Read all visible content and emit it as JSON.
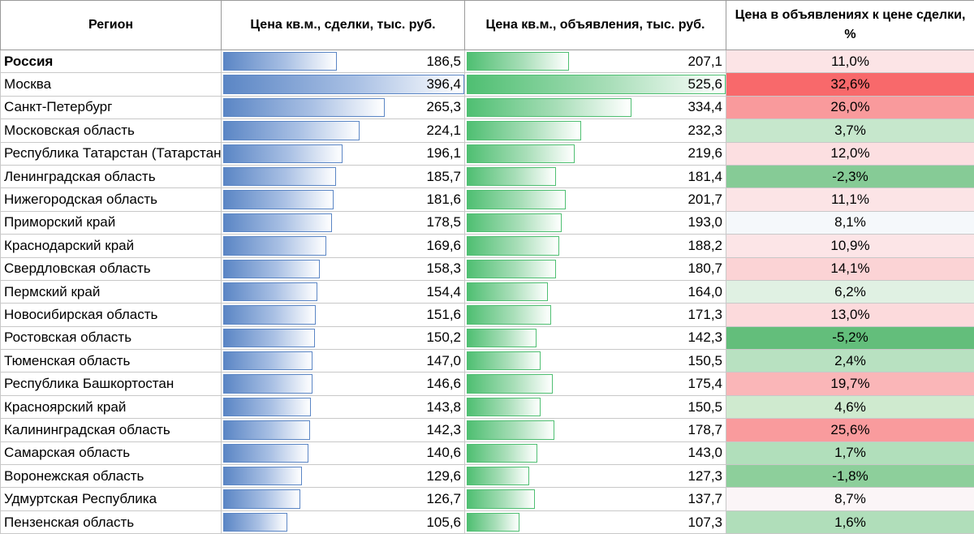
{
  "headers": {
    "region": "Регион",
    "deal": "Цена кв.м., сделки, тыс. руб.",
    "ad": "Цена кв.м., объявления, тыс. руб.",
    "diff": "Цена в объявлениях к цене сделки, %"
  },
  "scale": {
    "deal_max": 396.4,
    "ad_max": 525.6
  },
  "rows": [
    {
      "region": "Россия",
      "deal": "186,5",
      "deal_v": 186.5,
      "ad": "207,1",
      "ad_v": 207.1,
      "diff": "11,0%",
      "diff_color": "#fce4e6",
      "bold": true
    },
    {
      "region": "Москва",
      "deal": "396,4",
      "deal_v": 396.4,
      "ad": "525,6",
      "ad_v": 525.6,
      "diff": "32,6%",
      "diff_color": "#f8696b"
    },
    {
      "region": "Санкт-Петербург",
      "deal": "265,3",
      "deal_v": 265.3,
      "ad": "334,4",
      "ad_v": 334.4,
      "diff": "26,0%",
      "diff_color": "#f99a9c"
    },
    {
      "region": "Московская область",
      "deal": "224,1",
      "deal_v": 224.1,
      "ad": "232,3",
      "ad_v": 232.3,
      "diff": "3,7%",
      "diff_color": "#c6e7cc"
    },
    {
      "region": "Республика Татарстан (Татарстан)",
      "deal": "196,1",
      "deal_v": 196.1,
      "ad": "219,6",
      "ad_v": 219.6,
      "diff": "12,0%",
      "diff_color": "#fcdfe1"
    },
    {
      "region": "Ленинградская область",
      "deal": "185,7",
      "deal_v": 185.7,
      "ad": "181,4",
      "ad_v": 181.4,
      "diff": "-2,3%",
      "diff_color": "#86cb96"
    },
    {
      "region": "Нижегородская область",
      "deal": "181,6",
      "deal_v": 181.6,
      "ad": "201,7",
      "ad_v": 201.7,
      "diff": "11,1%",
      "diff_color": "#fce4e6"
    },
    {
      "region": "Приморский край",
      "deal": "178,5",
      "deal_v": 178.5,
      "ad": "193,0",
      "ad_v": 193.0,
      "diff": "8,1%",
      "diff_color": "#f5f8fb"
    },
    {
      "region": "Краснодарский край",
      "deal": "169,6",
      "deal_v": 169.6,
      "ad": "188,2",
      "ad_v": 188.2,
      "diff": "10,9%",
      "diff_color": "#fce5e7"
    },
    {
      "region": "Свердловская область",
      "deal": "158,3",
      "deal_v": 158.3,
      "ad": "180,7",
      "ad_v": 180.7,
      "diff": "14,1%",
      "diff_color": "#fbd3d5"
    },
    {
      "region": "Пермский край",
      "deal": "154,4",
      "deal_v": 154.4,
      "ad": "164,0",
      "ad_v": 164.0,
      "diff": "6,2%",
      "diff_color": "#e0f1e3"
    },
    {
      "region": "Новосибирская область",
      "deal": "151,6",
      "deal_v": 151.6,
      "ad": "171,3",
      "ad_v": 171.3,
      "diff": "13,0%",
      "diff_color": "#fcdadc"
    },
    {
      "region": "Ростовская область",
      "deal": "150,2",
      "deal_v": 150.2,
      "ad": "142,3",
      "ad_v": 142.3,
      "diff": "-5,2%",
      "diff_color": "#63be7b"
    },
    {
      "region": "Тюменская область",
      "deal": "147,0",
      "deal_v": 147.0,
      "ad": "150,5",
      "ad_v": 150.5,
      "diff": "2,4%",
      "diff_color": "#b8e1c1"
    },
    {
      "region": "Республика Башкортостан",
      "deal": "146,6",
      "deal_v": 146.6,
      "ad": "175,4",
      "ad_v": 175.4,
      "diff": "19,7%",
      "diff_color": "#fab6b8"
    },
    {
      "region": "Красноярский край",
      "deal": "143,8",
      "deal_v": 143.8,
      "ad": "150,5",
      "ad_v": 150.5,
      "diff": "4,6%",
      "diff_color": "#cfeacf"
    },
    {
      "region": "Калининградская область",
      "deal": "142,3",
      "deal_v": 142.3,
      "ad": "178,7",
      "ad_v": 178.7,
      "diff": "25,6%",
      "diff_color": "#f99b9d"
    },
    {
      "region": "Самарская область",
      "deal": "140,6",
      "deal_v": 140.6,
      "ad": "143,0",
      "ad_v": 143.0,
      "diff": "1,7%",
      "diff_color": "#b1dfbb"
    },
    {
      "region": "Воронежская область",
      "deal": "129,6",
      "deal_v": 129.6,
      "ad": "127,3",
      "ad_v": 127.3,
      "diff": "-1,8%",
      "diff_color": "#8dcf9b"
    },
    {
      "region": "Удмуртская Республика",
      "deal": "126,7",
      "deal_v": 126.7,
      "ad": "137,7",
      "ad_v": 137.7,
      "diff": "8,7%",
      "diff_color": "#fbf5f7"
    },
    {
      "region": "Пензенская область",
      "deal": "105,6",
      "deal_v": 105.6,
      "ad": "107,3",
      "ad_v": 107.3,
      "diff": "1,6%",
      "diff_color": "#b0deba"
    }
  ]
}
